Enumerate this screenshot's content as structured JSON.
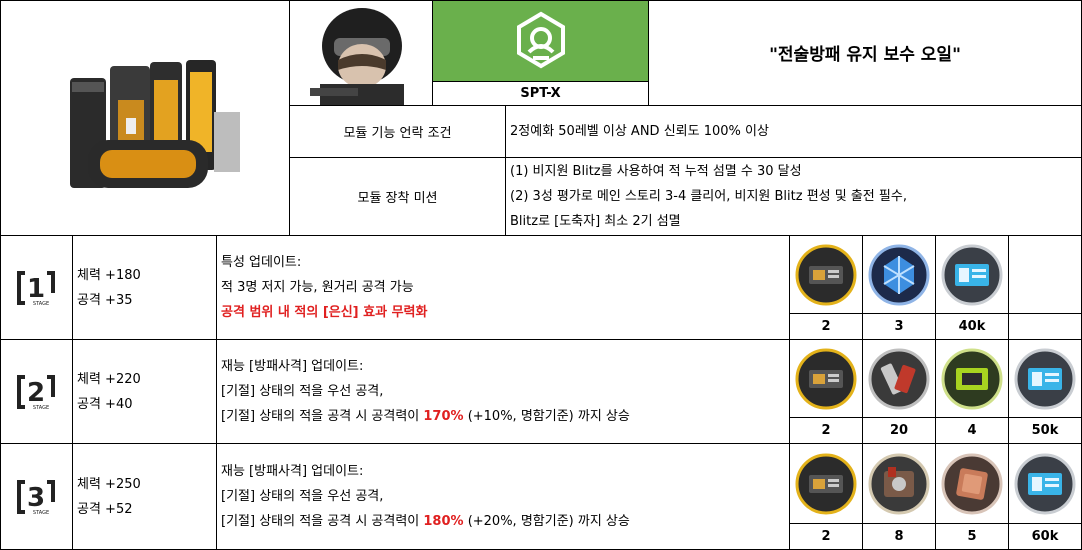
{
  "header": {
    "emblem_label": "SPT-X",
    "module_title": "\"전술방패 유지 보수 오일\"",
    "accent_green": "#6ab04c"
  },
  "conditions": [
    {
      "label": "모듈 기능 언락 조건",
      "lines": [
        "2정예화 50레벨 이상 AND 신뢰도 100% 이상"
      ]
    },
    {
      "label": "모듈 장착 미션",
      "lines": [
        "(1) 비지원 Blitz를 사용하여 적 누적 섬멸 수 30 달성",
        "(2) 3성 평가로 메인 스토리 3-4 클리어, 비지원 Blitz 편성 및 출전 필수,",
        "Blitz로 [도축자] 최소 2기 섬멸"
      ]
    }
  ],
  "stages": [
    {
      "stage": "1",
      "stage_label": "STAGE",
      "stats": [
        "체력 +180",
        "공격 +35"
      ],
      "desc_lines": [
        {
          "pre": "특성 업데이트:",
          "hl": "",
          "post": "",
          "red_line": false
        },
        {
          "pre": "적 3명 저지 가능, 원거리 공격 가능",
          "hl": "",
          "post": "",
          "red_line": false
        },
        {
          "pre": "공격 범위 내 적의 [은신] 효과 무력화",
          "hl": "",
          "post": "",
          "red_line": true
        }
      ],
      "materials": [
        {
          "icon": "module-data-block-icon",
          "count": "2"
        },
        {
          "icon": "blue-crystal-icon",
          "count": "3"
        },
        {
          "icon": "lmd-currency-icon",
          "count": "40k"
        },
        {
          "icon": "",
          "count": ""
        }
      ]
    },
    {
      "stage": "2",
      "stage_label": "STAGE",
      "stats": [
        "체력 +220",
        "공격 +40"
      ],
      "desc_lines": [
        {
          "pre": "재능 [방패사격] 업데이트:",
          "hl": "",
          "post": "",
          "red_line": false
        },
        {
          "pre": "[기절] 상태의 적을 우선 공격,",
          "hl": "",
          "post": "",
          "red_line": false
        },
        {
          "pre": "[기절] 상태의 적을 공격 시 공격력이 ",
          "hl": "170%",
          "post": " (+10%, 명함기준) 까지 상승",
          "red_line": false
        }
      ],
      "materials": [
        {
          "icon": "module-data-block-icon",
          "count": "2"
        },
        {
          "icon": "crafting-tool-icon",
          "count": "20"
        },
        {
          "icon": "circuit-chip-icon",
          "count": "4"
        },
        {
          "icon": "lmd-currency-icon",
          "count": "50k"
        }
      ]
    },
    {
      "stage": "3",
      "stage_label": "STAGE",
      "stats": [
        "체력 +250",
        "공격 +52"
      ],
      "desc_lines": [
        {
          "pre": "재능 [방패사격] 업데이트:",
          "hl": "",
          "post": "",
          "red_line": false
        },
        {
          "pre": "[기절] 상태의 적을 우선 공격,",
          "hl": "",
          "post": "",
          "red_line": false
        },
        {
          "pre": "[기절] 상태의 적을 공격 시 공격력이 ",
          "hl": "180%",
          "post": " (+20%, 명함기준) 까지 상승",
          "red_line": false
        }
      ],
      "materials": [
        {
          "icon": "module-data-block-icon",
          "count": "2"
        },
        {
          "icon": "gear-rig-icon",
          "count": "8"
        },
        {
          "icon": "copper-plate-icon",
          "count": "5"
        },
        {
          "icon": "lmd-currency-icon",
          "count": "60k"
        }
      ]
    }
  ]
}
